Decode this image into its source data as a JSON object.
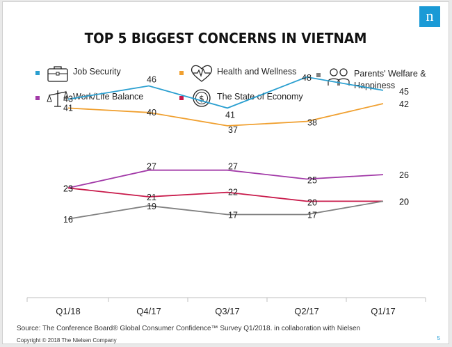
{
  "logo": "n",
  "title": "TOP 5 BIGGEST CONCERNS IN VIETNAM",
  "colors": {
    "job_security": "#2a9fd0",
    "health": "#f0a030",
    "parents": "#808080",
    "work_life": "#a23aa8",
    "economy": "#c8194a"
  },
  "legend": [
    {
      "label": "Job Security",
      "icon": "briefcase-icon",
      "color": "#2a9fd0"
    },
    {
      "label": "Health and Wellness",
      "icon": "heartbeat-icon",
      "color": "#f0a030"
    },
    {
      "label": "Parents' Welfare &",
      "label2": "Happiness",
      "icon": "elderly-couple-icon",
      "color": "#808080"
    },
    {
      "label": "Work/Life Balance",
      "icon": "balance-scale-icon",
      "color": "#a23aa8"
    },
    {
      "label": "The State of Economy",
      "icon": "dollar-coin-icon",
      "color": "#c8194a"
    }
  ],
  "chart_data": {
    "type": "line",
    "categories": [
      "Q1/18",
      "Q4/17",
      "Q3/17",
      "Q2/17",
      "Q1/17"
    ],
    "series": [
      {
        "name": "Job Security",
        "values": [
          43,
          46,
          41,
          48,
          45
        ]
      },
      {
        "name": "Health and Wellness",
        "values": [
          41,
          40,
          37,
          38,
          42
        ]
      },
      {
        "name": "Work/Life Balance",
        "values": [
          23,
          27,
          27,
          25,
          26
        ]
      },
      {
        "name": "The State of Economy",
        "values": [
          23,
          21,
          22,
          20,
          20
        ]
      },
      {
        "name": "Parents' Welfare & Happiness",
        "values": [
          16,
          19,
          17,
          17,
          20
        ]
      }
    ],
    "legend_position": "top",
    "grid": false
  },
  "footer": {
    "source": "Source: The Conference Board® Global Consumer Confidence™ Survey Q1/2018. in collaboration with Nielsen",
    "copyright": "Copyright © 2018 The Nielsen Company",
    "page": "5"
  }
}
